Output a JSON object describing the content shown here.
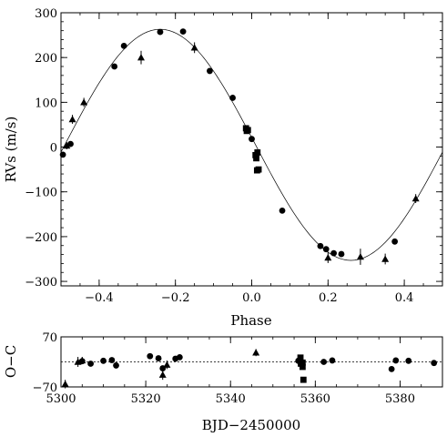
{
  "chart_data": [
    {
      "type": "scatter",
      "panel": "top",
      "xlabel": "Phase",
      "ylabel": "RVs (m/s)",
      "xlim": [
        -0.5,
        0.5
      ],
      "ylim": [
        -310,
        300
      ],
      "xticks": [
        -0.4,
        -0.2,
        0.0,
        0.2,
        0.4
      ],
      "xtick_labels": [
        "−0.4",
        "−0.2",
        "0.0",
        "0.2",
        "0.4"
      ],
      "yticks": [
        -300,
        -200,
        -100,
        0,
        100,
        200,
        300
      ],
      "ytick_labels": [
        "−300",
        "−200",
        "−100",
        "0",
        "100",
        "200",
        "300"
      ],
      "model": {
        "type": "sine",
        "amplitude": 258,
        "offset": 5,
        "peak_phase": -0.24
      },
      "series": [
        {
          "marker": "circle",
          "points": [
            {
              "x": -0.495,
              "y": -17
            },
            {
              "x": -0.475,
              "y": 7
            },
            {
              "x": -0.36,
              "y": 180
            },
            {
              "x": -0.335,
              "y": 226
            },
            {
              "x": -0.24,
              "y": 257
            },
            {
              "x": -0.18,
              "y": 258
            },
            {
              "x": -0.11,
              "y": 170
            },
            {
              "x": -0.05,
              "y": 110
            },
            {
              "x": 0.0,
              "y": 18
            },
            {
              "x": 0.08,
              "y": -142
            },
            {
              "x": 0.18,
              "y": -221
            },
            {
              "x": 0.195,
              "y": -228
            },
            {
              "x": 0.215,
              "y": -237
            },
            {
              "x": 0.235,
              "y": -239
            },
            {
              "x": 0.375,
              "y": -211
            }
          ]
        },
        {
          "marker": "triangle",
          "points": [
            {
              "x": -0.485,
              "y": 3,
              "err": 8
            },
            {
              "x": -0.47,
              "y": 62,
              "err": 10
            },
            {
              "x": -0.44,
              "y": 100,
              "err": 10
            },
            {
              "x": -0.29,
              "y": 200,
              "err": 15
            },
            {
              "x": -0.15,
              "y": 222,
              "err": 12
            },
            {
              "x": 0.2,
              "y": -247,
              "err": 12
            },
            {
              "x": 0.285,
              "y": -245,
              "err": 18
            },
            {
              "x": 0.35,
              "y": -250,
              "err": 12
            },
            {
              "x": 0.43,
              "y": -115,
              "err": 10
            }
          ]
        },
        {
          "marker": "square",
          "points": [
            {
              "x": -0.015,
              "y": 42
            },
            {
              "x": -0.013,
              "y": 36
            },
            {
              "x": -0.01,
              "y": 38
            },
            {
              "x": 0.01,
              "y": -18
            },
            {
              "x": 0.012,
              "y": -25
            },
            {
              "x": 0.015,
              "y": -12
            },
            {
              "x": 0.014,
              "y": -52
            },
            {
              "x": 0.018,
              "y": -50
            }
          ]
        }
      ]
    },
    {
      "type": "scatter",
      "panel": "bottom",
      "xlabel": "BJD−2450000",
      "ylabel": "O−C",
      "xlim": [
        5300,
        5390
      ],
      "ylim": [
        -70,
        70
      ],
      "xticks": [
        5300,
        5320,
        5340,
        5360,
        5380
      ],
      "xtick_labels": [
        "5300",
        "5320",
        "5340",
        "5360",
        "5380"
      ],
      "yticks": [
        -70,
        70
      ],
      "ytick_labels": [
        "−70",
        "70"
      ],
      "zero_line": "dashed",
      "series": [
        {
          "marker": "circle",
          "points": [
            {
              "x": 5305,
              "y": 2
            },
            {
              "x": 5307,
              "y": -5
            },
            {
              "x": 5310,
              "y": 3
            },
            {
              "x": 5312,
              "y": 5
            },
            {
              "x": 5313,
              "y": -10
            },
            {
              "x": 5321,
              "y": 16
            },
            {
              "x": 5323,
              "y": 10
            },
            {
              "x": 5324,
              "y": -18
            },
            {
              "x": 5327,
              "y": 9
            },
            {
              "x": 5328,
              "y": 13
            },
            {
              "x": 5356,
              "y": 3
            },
            {
              "x": 5362,
              "y": 0
            },
            {
              "x": 5364,
              "y": 4
            },
            {
              "x": 5378,
              "y": -20
            },
            {
              "x": 5379,
              "y": 4
            },
            {
              "x": 5382,
              "y": 3
            },
            {
              "x": 5388,
              "y": -3
            }
          ]
        },
        {
          "marker": "triangle",
          "points": [
            {
              "x": 5301,
              "y": -62,
              "err": 12
            },
            {
              "x": 5304,
              "y": 0,
              "err": 14
            },
            {
              "x": 5305,
              "y": 4,
              "err": 10
            },
            {
              "x": 5324,
              "y": -36,
              "err": 14
            },
            {
              "x": 5325,
              "y": -8,
              "err": 12
            },
            {
              "x": 5346,
              "y": 26,
              "err": 10
            }
          ]
        },
        {
          "marker": "square",
          "points": [
            {
              "x": 5356.5,
              "y": 12
            },
            {
              "x": 5356.6,
              "y": -5
            },
            {
              "x": 5357,
              "y": -2
            },
            {
              "x": 5357,
              "y": -14
            },
            {
              "x": 5357.2,
              "y": -50
            }
          ]
        }
      ]
    }
  ]
}
